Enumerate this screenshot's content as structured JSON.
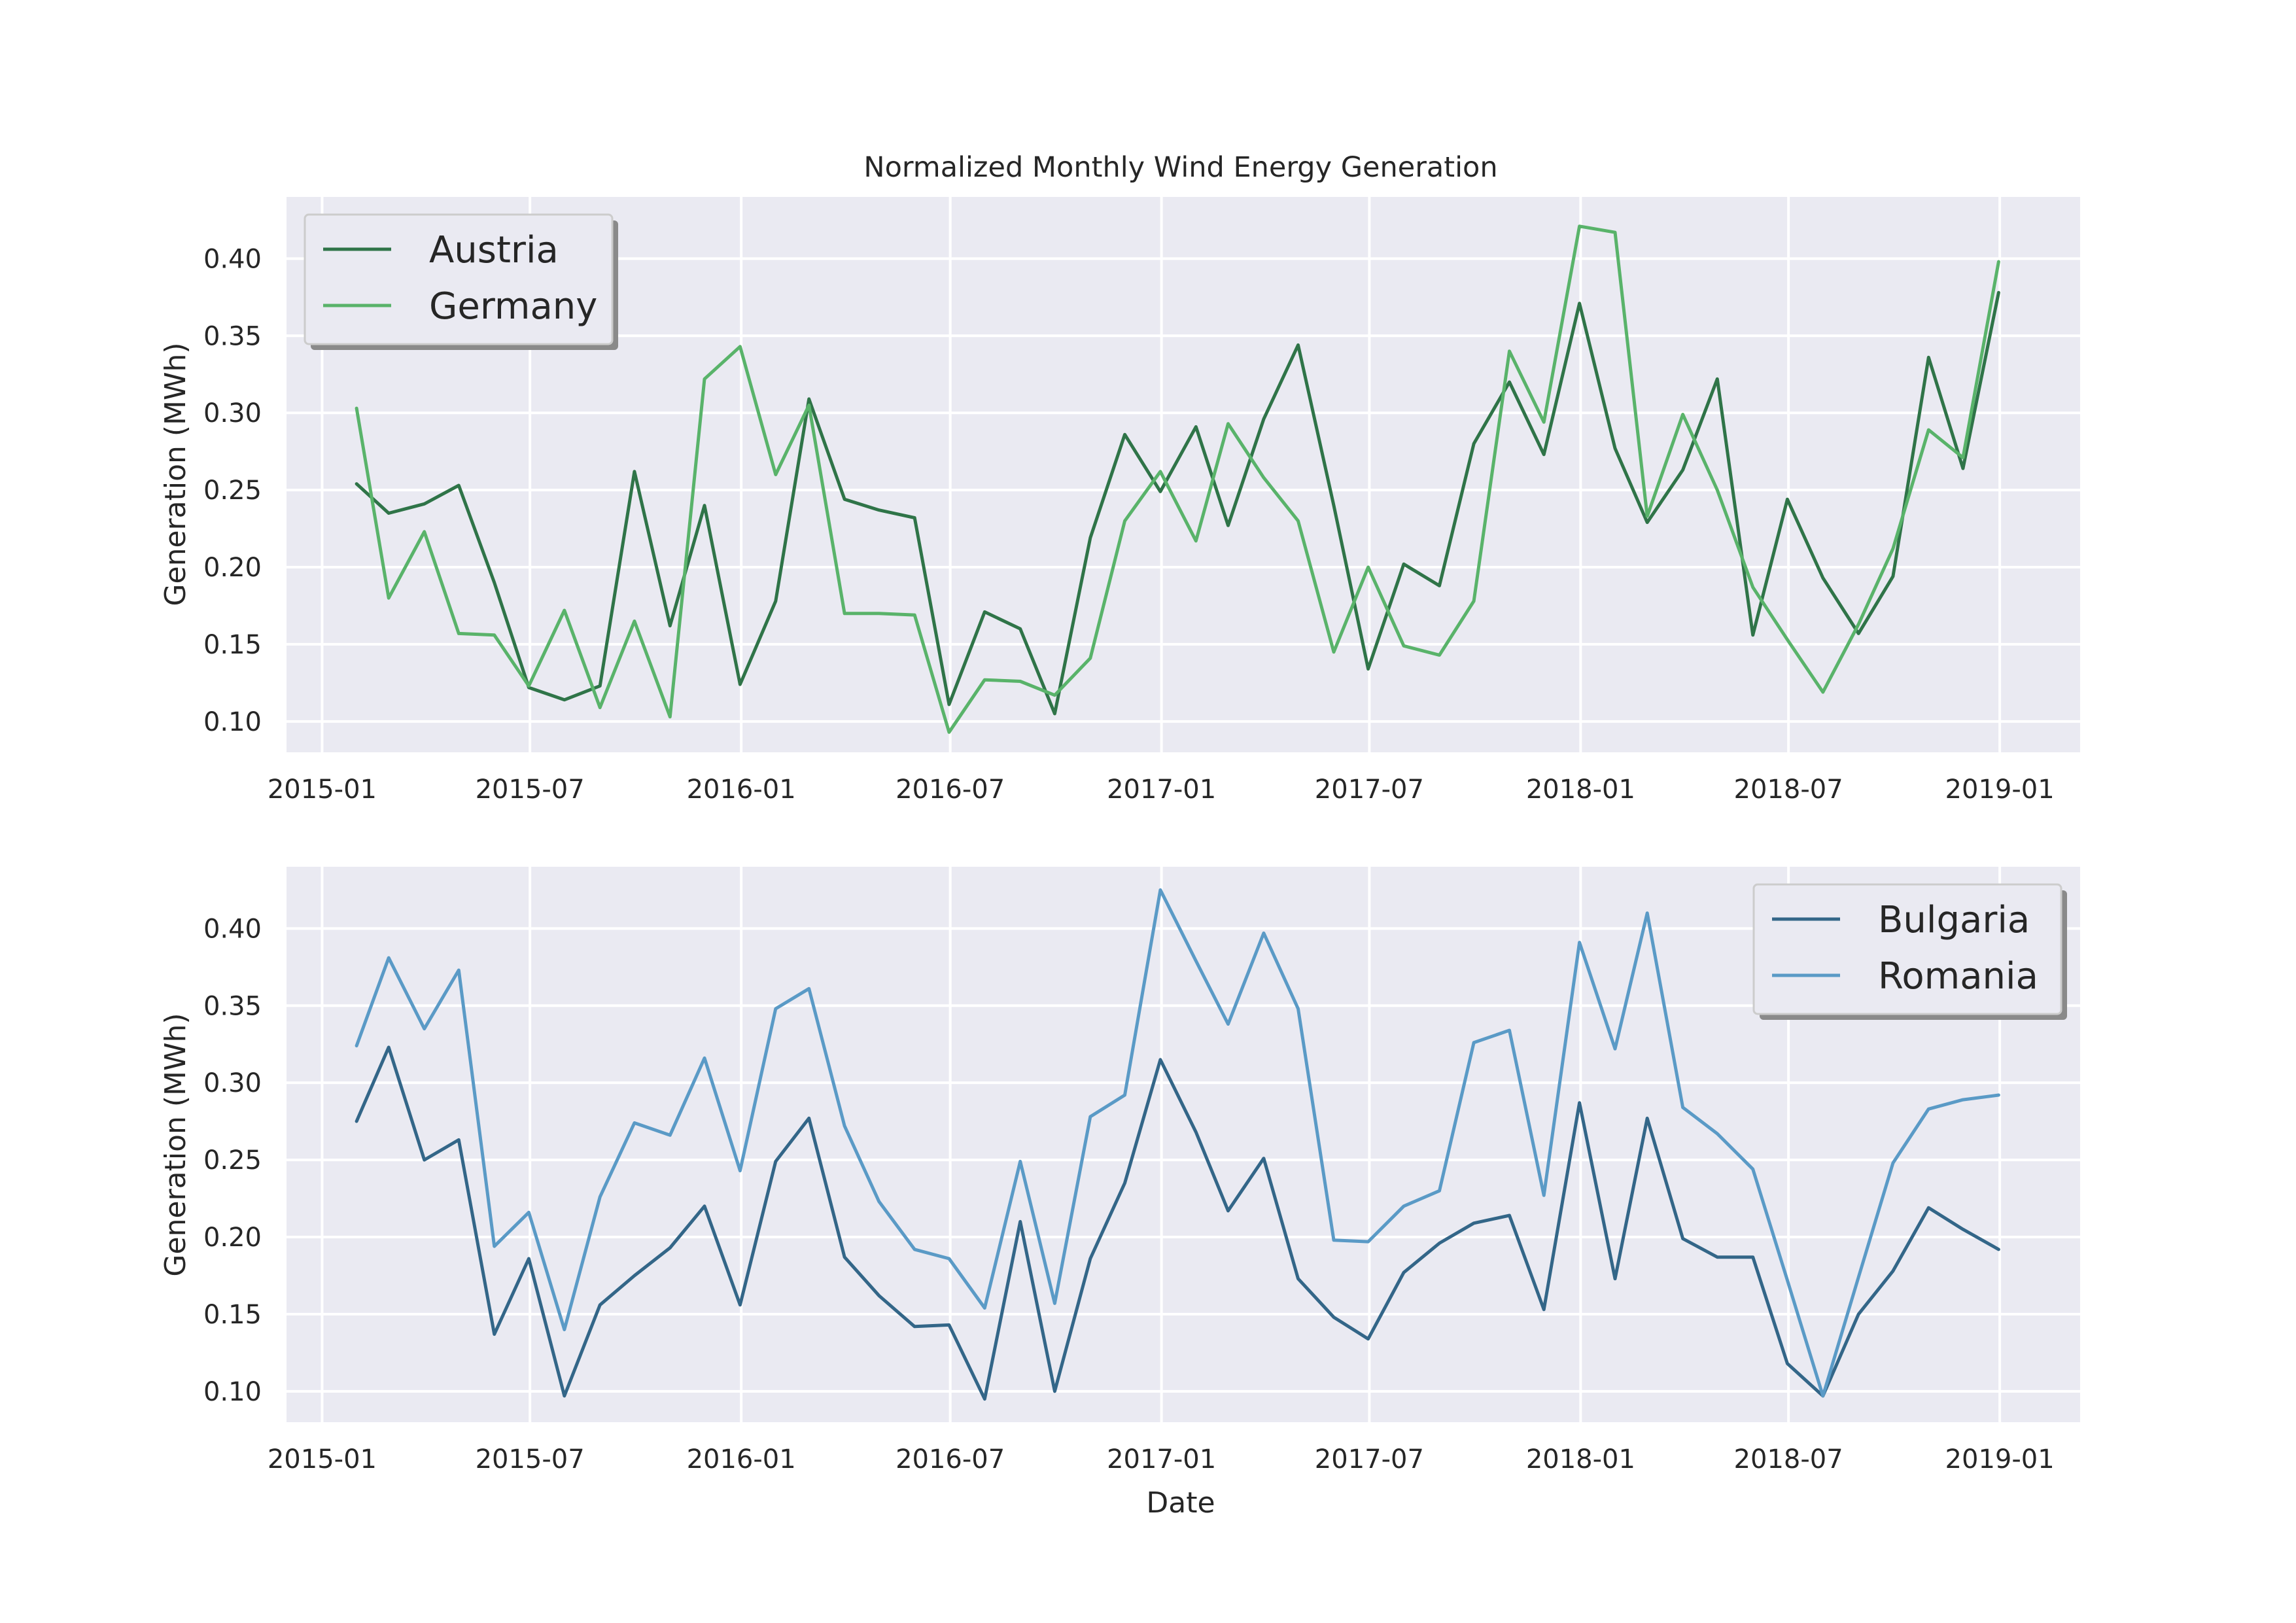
{
  "chart_data": [
    {
      "type": "line",
      "title": "Normalized Monthly Wind Energy Generation",
      "xlabel": "",
      "ylabel": "Generation (MWh)",
      "ylim": [
        0.08,
        0.44
      ],
      "xlim": [
        "2014-12-01",
        "2019-03-12"
      ],
      "yticks": [
        "0.10",
        "0.15",
        "0.20",
        "0.25",
        "0.30",
        "0.35",
        "0.40"
      ],
      "xticks": [
        "2015-01",
        "2015-07",
        "2016-01",
        "2016-07",
        "2017-01",
        "2017-07",
        "2018-01",
        "2018-07",
        "2019-01"
      ],
      "legend_position": "upper-left",
      "grid": true,
      "x": [
        "2015-01-31",
        "2015-02-28",
        "2015-03-31",
        "2015-04-30",
        "2015-05-31",
        "2015-06-30",
        "2015-07-31",
        "2015-08-31",
        "2015-09-30",
        "2015-10-31",
        "2015-11-30",
        "2015-12-31",
        "2016-01-31",
        "2016-02-29",
        "2016-03-31",
        "2016-04-30",
        "2016-05-31",
        "2016-06-30",
        "2016-07-31",
        "2016-08-31",
        "2016-09-30",
        "2016-10-31",
        "2016-11-30",
        "2016-12-31",
        "2017-01-31",
        "2017-02-28",
        "2017-03-31",
        "2017-04-30",
        "2017-05-31",
        "2017-06-30",
        "2017-07-31",
        "2017-08-31",
        "2017-09-30",
        "2017-10-31",
        "2017-11-30",
        "2017-12-31",
        "2018-01-31",
        "2018-02-28",
        "2018-03-31",
        "2018-04-30",
        "2018-05-31",
        "2018-06-30",
        "2018-07-31",
        "2018-08-31",
        "2018-09-30",
        "2018-10-31",
        "2018-11-30",
        "2018-12-31"
      ],
      "series": [
        {
          "name": "Austria",
          "color": "#2f7448",
          "values": [
            0.254,
            0.235,
            0.241,
            0.253,
            0.19,
            0.122,
            0.114,
            0.123,
            0.262,
            0.162,
            0.24,
            0.124,
            0.178,
            0.309,
            0.244,
            0.237,
            0.232,
            0.111,
            0.171,
            0.16,
            0.105,
            0.219,
            0.286,
            0.249,
            0.291,
            0.227,
            0.296,
            0.344,
            0.24,
            0.134,
            0.202,
            0.188,
            0.28,
            0.32,
            0.273,
            0.371,
            0.277,
            0.229,
            0.263,
            0.322,
            0.156,
            0.244,
            0.193,
            0.157,
            0.194,
            0.336,
            0.264,
            0.378
          ]
        },
        {
          "name": "Germany",
          "color": "#59b36a",
          "values": [
            0.303,
            0.18,
            0.223,
            0.157,
            0.156,
            0.123,
            0.172,
            0.109,
            0.165,
            0.103,
            0.322,
            0.343,
            0.26,
            0.305,
            0.17,
            0.17,
            0.169,
            0.093,
            0.127,
            0.126,
            0.117,
            0.141,
            0.23,
            0.262,
            0.217,
            0.293,
            0.258,
            0.23,
            0.145,
            0.2,
            0.149,
            0.143,
            0.178,
            0.34,
            0.294,
            0.421,
            0.417,
            0.233,
            0.299,
            0.25,
            0.187,
            0.153,
            0.119,
            0.163,
            0.212,
            0.289,
            0.271,
            0.398
          ]
        }
      ]
    },
    {
      "type": "line",
      "title": "",
      "xlabel": "Date",
      "ylabel": "Generation (MWh)",
      "ylim": [
        0.08,
        0.44
      ],
      "xlim": [
        "2014-12-01",
        "2019-03-12"
      ],
      "yticks": [
        "0.10",
        "0.15",
        "0.20",
        "0.25",
        "0.30",
        "0.35",
        "0.40"
      ],
      "xticks": [
        "2015-01",
        "2015-07",
        "2016-01",
        "2016-07",
        "2017-01",
        "2017-07",
        "2018-01",
        "2018-07",
        "2019-01"
      ],
      "legend_position": "upper-right",
      "grid": true,
      "x": [
        "2015-01-31",
        "2015-02-28",
        "2015-03-31",
        "2015-04-30",
        "2015-05-31",
        "2015-06-30",
        "2015-07-31",
        "2015-08-31",
        "2015-09-30",
        "2015-10-31",
        "2015-11-30",
        "2015-12-31",
        "2016-01-31",
        "2016-02-29",
        "2016-03-31",
        "2016-04-30",
        "2016-05-31",
        "2016-06-30",
        "2016-07-31",
        "2016-08-31",
        "2016-09-30",
        "2016-10-31",
        "2016-11-30",
        "2016-12-31",
        "2017-01-31",
        "2017-02-28",
        "2017-03-31",
        "2017-04-30",
        "2017-05-31",
        "2017-06-30",
        "2017-07-31",
        "2017-08-31",
        "2017-09-30",
        "2017-10-31",
        "2017-11-30",
        "2017-12-31",
        "2018-01-31",
        "2018-02-28",
        "2018-03-31",
        "2018-04-30",
        "2018-05-31",
        "2018-06-30",
        "2018-07-31",
        "2018-08-31",
        "2018-09-30",
        "2018-10-31",
        "2018-11-30",
        "2018-12-31"
      ],
      "series": [
        {
          "name": "Bulgaria",
          "color": "#336688",
          "values": [
            0.275,
            0.323,
            0.25,
            0.263,
            0.137,
            0.186,
            0.097,
            0.156,
            0.175,
            0.193,
            0.22,
            0.156,
            0.249,
            0.277,
            0.187,
            0.162,
            0.142,
            0.143,
            0.095,
            0.21,
            0.1,
            0.186,
            0.235,
            0.315,
            0.268,
            0.217,
            0.251,
            0.173,
            0.148,
            0.134,
            0.177,
            0.196,
            0.209,
            0.214,
            0.153,
            0.287,
            0.173,
            0.277,
            0.199,
            0.187,
            0.187,
            0.118,
            0.097,
            0.15,
            0.178,
            0.219,
            0.205,
            0.192
          ]
        },
        {
          "name": "Romania",
          "color": "#5a9ac6",
          "values": [
            0.324,
            0.381,
            0.335,
            0.373,
            0.194,
            0.216,
            0.14,
            0.226,
            0.274,
            0.266,
            0.316,
            0.243,
            0.348,
            0.361,
            0.272,
            0.223,
            0.192,
            0.186,
            0.154,
            0.249,
            0.157,
            0.278,
            0.292,
            0.425,
            0.379,
            0.338,
            0.397,
            0.348,
            0.198,
            0.197,
            0.22,
            0.23,
            0.326,
            0.334,
            0.227,
            0.391,
            0.322,
            0.41,
            0.284,
            0.267,
            0.244,
            0.172,
            0.097,
            0.174,
            0.248,
            0.283,
            0.289,
            0.292
          ]
        }
      ]
    }
  ]
}
